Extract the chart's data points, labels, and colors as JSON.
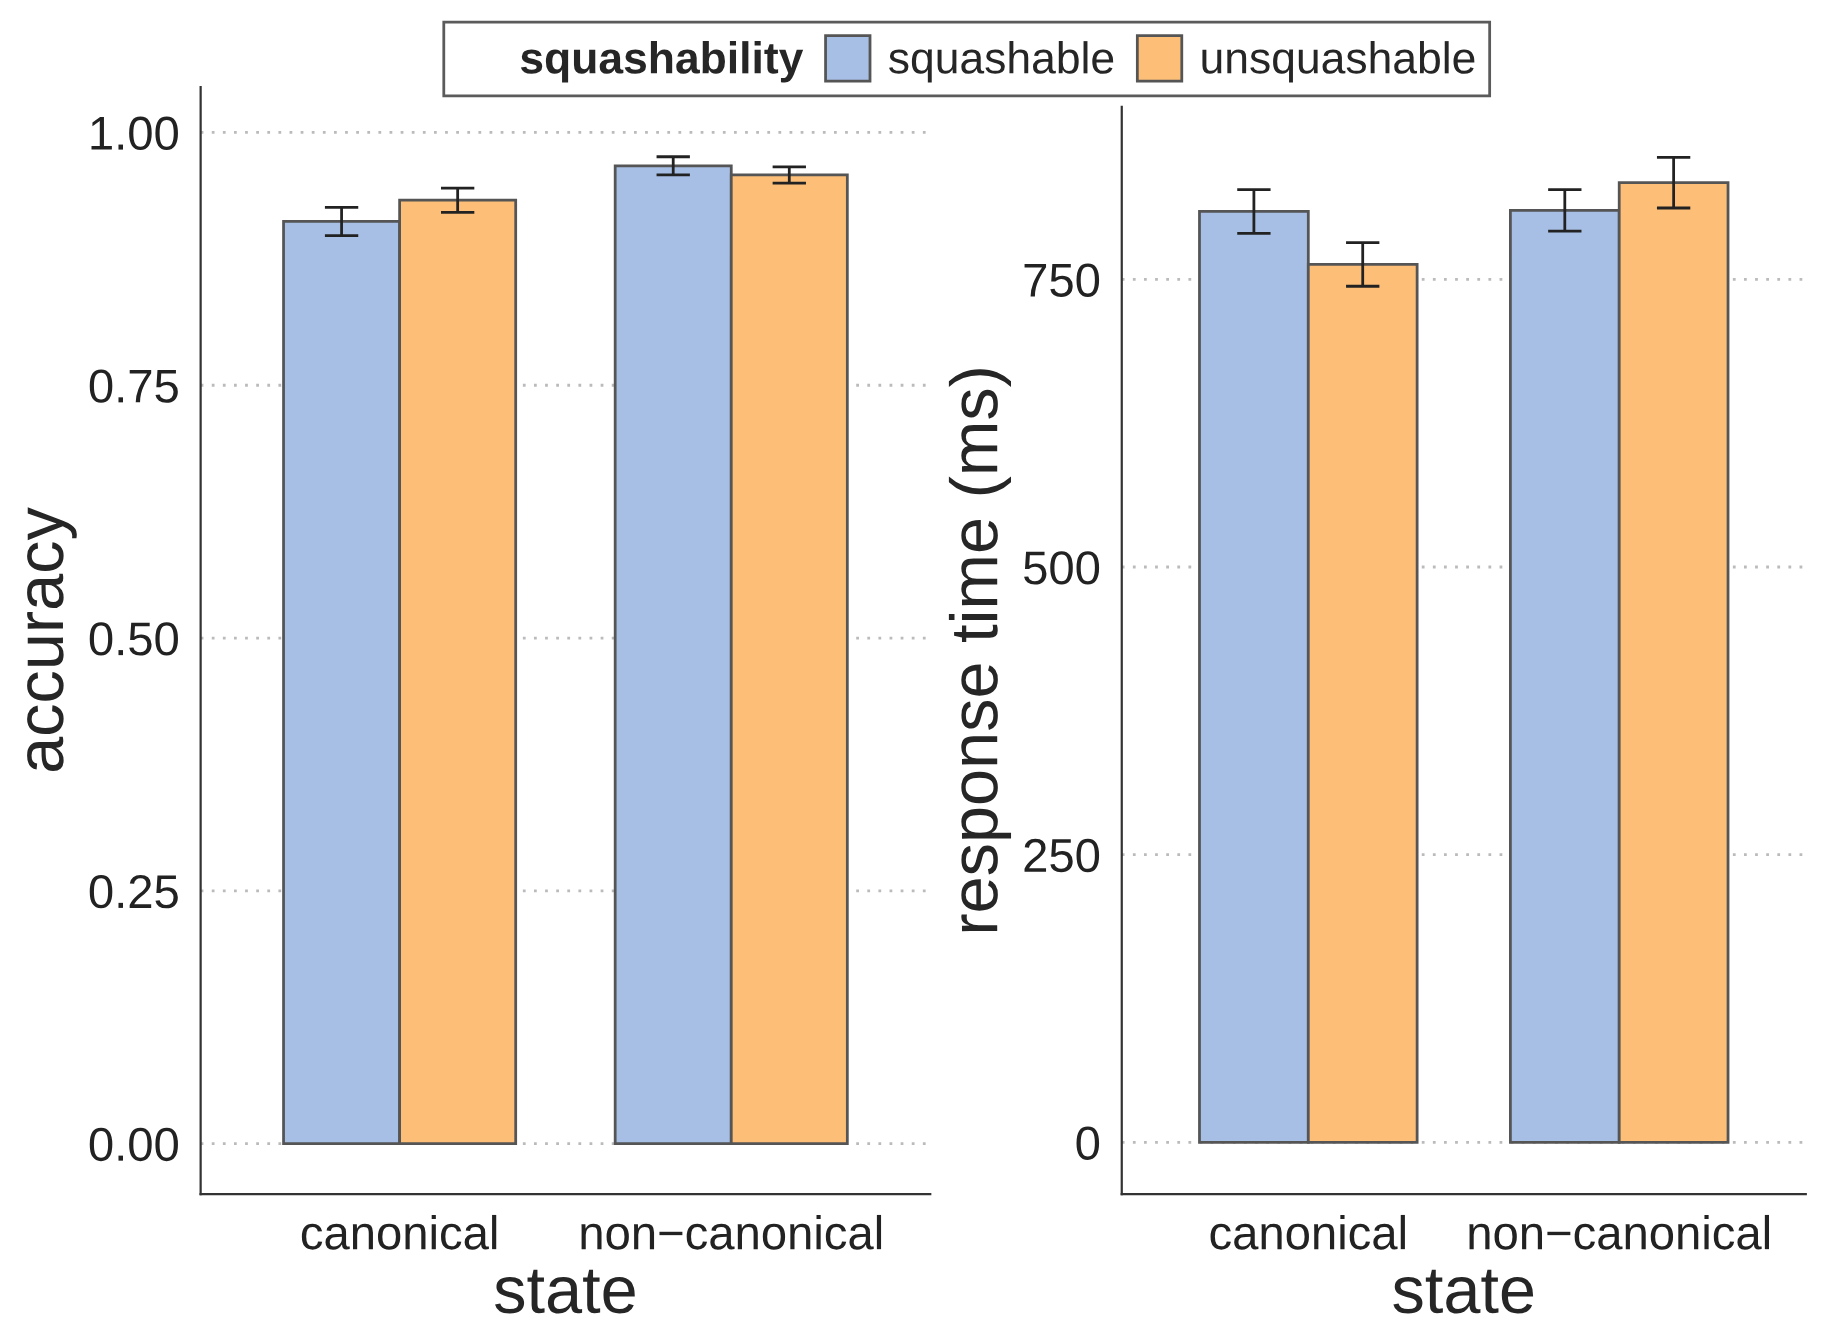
{
  "chart_data": [
    {
      "type": "bar",
      "categories": [
        "canonical",
        "non−canonical"
      ],
      "xlabel": "state",
      "ylabel": "accuracy",
      "legend_title": "squashability",
      "legend": "top",
      "grid": "y",
      "ylim": [
        -0.05,
        1.045
      ],
      "yticks": [
        {
          "value": 0,
          "label": "0.00"
        },
        {
          "value": 0.25,
          "label": "0.25"
        },
        {
          "value": 0.5,
          "label": "0.50"
        },
        {
          "value": 0.75,
          "label": "0.75"
        },
        {
          "value": 1,
          "label": "1.00"
        }
      ],
      "series": [
        {
          "name": "squashable",
          "color": "#a7bfe4",
          "values": [
            0.912,
            0.967
          ],
          "errors": [
            0.014,
            0.009
          ]
        },
        {
          "name": "unsquashable",
          "color": "#fdbf78",
          "values": [
            0.933,
            0.958
          ],
          "errors": [
            0.012,
            0.008
          ]
        }
      ]
    },
    {
      "type": "bar",
      "categories": [
        "canonical",
        "non−canonical"
      ],
      "xlabel": "state",
      "ylabel": "response time (ms)",
      "grid": "y",
      "ylim": [
        -45,
        900
      ],
      "yticks": [
        0,
        250,
        500,
        750
      ],
      "series": [
        {
          "color": "#a7bfe4",
          "values": [
            809,
            810
          ],
          "errors": [
            19,
            18
          ]
        },
        {
          "color": "#fdbf78",
          "values": [
            763,
            834
          ],
          "errors": [
            19,
            22
          ]
        }
      ]
    }
  ]
}
